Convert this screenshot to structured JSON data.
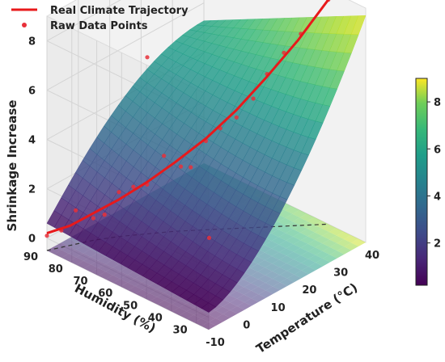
{
  "chart_data": {
    "type": "surface3d",
    "xlabel": "Temperature (°C)",
    "ylabel": "Humidity (%)",
    "zlabel": "Shrinkage Increase",
    "x_ticks": [
      -10,
      0,
      10,
      20,
      30,
      40
    ],
    "y_ticks": [
      30,
      40,
      50,
      60,
      70,
      80,
      90
    ],
    "z_ticks": [
      0,
      2,
      4,
      6,
      8
    ],
    "xlim": [
      -10,
      40
    ],
    "ylim": [
      25,
      90
    ],
    "zlim": [
      -0.5,
      9
    ],
    "colorbar_ticks": [
      2,
      4,
      6,
      8
    ],
    "colorbar_range": [
      0.2,
      9
    ],
    "colormap": "viridis",
    "legend_location": "top-left",
    "series": [
      {
        "name": "Real Climate Trajectory",
        "kind": "line",
        "color": "#e8191b",
        "x": [
          -10,
          -5,
          0,
          5,
          10,
          15,
          20,
          25,
          30,
          35,
          40
        ],
        "y": [
          90,
          87,
          84,
          80,
          75,
          70,
          64,
          58,
          52,
          46,
          40
        ],
        "z": [
          0.2,
          0.3,
          0.6,
          1.0,
          1.6,
          2.3,
          3.2,
          4.3,
          5.6,
          7.0,
          8.6
        ]
      },
      {
        "name": "Raw Data Points",
        "kind": "scatter",
        "color": "#e8303a",
        "x": [
          -10,
          -7,
          -4,
          0,
          2,
          5,
          8,
          10,
          13,
          16,
          20,
          23,
          25,
          28,
          30,
          33,
          36,
          40,
          18,
          12,
          6
        ],
        "y": [
          90,
          88,
          86,
          84,
          82,
          80,
          78,
          75,
          72,
          69,
          64,
          62,
          58,
          55,
          52,
          49,
          46,
          40,
          85,
          60,
          45
        ],
        "z": [
          0.1,
          0.2,
          0.9,
          0.4,
          0.5,
          1.3,
          1.4,
          1.5,
          2.6,
          2.1,
          3.1,
          3.5,
          4.0,
          4.7,
          5.7,
          6.5,
          7.2,
          8.6,
          5.6,
          2.8,
          1.1
        ]
      }
    ]
  }
}
